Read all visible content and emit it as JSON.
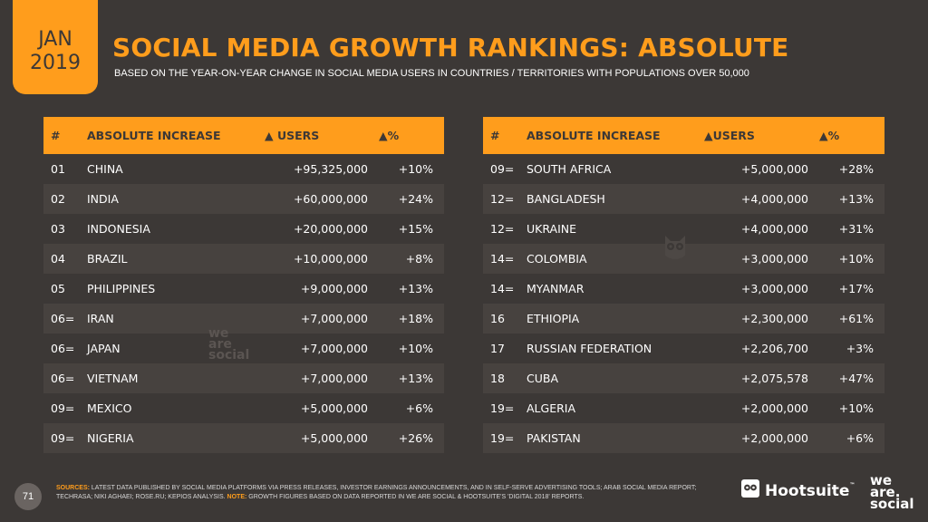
{
  "badge": {
    "month": "JAN",
    "year": "2019"
  },
  "title": "SOCIAL MEDIA GROWTH RANKINGS: ABSOLUTE",
  "subtitle": "BASED ON THE YEAR-ON-YEAR CHANGE IN SOCIAL MEDIA USERS IN COUNTRIES / TERRITORIES WITH POPULATIONS OVER 50,000",
  "left_table": {
    "headers": {
      "num": "#",
      "country": "ABSOLUTE INCREASE",
      "users": "▲ USERS",
      "pct": "▲%"
    },
    "rows": [
      {
        "num": "01",
        "country": "CHINA",
        "users": "+95,325,000",
        "pct": "+10%"
      },
      {
        "num": "02",
        "country": "INDIA",
        "users": "+60,000,000",
        "pct": "+24%"
      },
      {
        "num": "03",
        "country": "INDONESIA",
        "users": "+20,000,000",
        "pct": "+15%"
      },
      {
        "num": "04",
        "country": "BRAZIL",
        "users": "+10,000,000",
        "pct": "+8%"
      },
      {
        "num": "05",
        "country": "PHILIPPINES",
        "users": "+9,000,000",
        "pct": "+13%"
      },
      {
        "num": "06=",
        "country": "IRAN",
        "users": "+7,000,000",
        "pct": "+18%"
      },
      {
        "num": "06=",
        "country": "JAPAN",
        "users": "+7,000,000",
        "pct": "+10%"
      },
      {
        "num": "06=",
        "country": "VIETNAM",
        "users": "+7,000,000",
        "pct": "+13%"
      },
      {
        "num": "09=",
        "country": "MEXICO",
        "users": "+5,000,000",
        "pct": "+6%"
      },
      {
        "num": "09=",
        "country": "NIGERIA",
        "users": "+5,000,000",
        "pct": "+26%"
      }
    ]
  },
  "right_table": {
    "headers": {
      "num": "#",
      "country": "ABSOLUTE INCREASE",
      "users": "▲USERS",
      "pct": "▲%"
    },
    "rows": [
      {
        "num": "09=",
        "country": "SOUTH AFRICA",
        "users": "+5,000,000",
        "pct": "+28%"
      },
      {
        "num": "12=",
        "country": "BANGLADESH",
        "users": "+4,000,000",
        "pct": "+13%"
      },
      {
        "num": "12=",
        "country": "UKRAINE",
        "users": "+4,000,000",
        "pct": "+31%"
      },
      {
        "num": "14=",
        "country": "COLOMBIA",
        "users": "+3,000,000",
        "pct": "+10%"
      },
      {
        "num": "14=",
        "country": "MYANMAR",
        "users": "+3,000,000",
        "pct": "+17%"
      },
      {
        "num": "16",
        "country": "ETHIOPIA",
        "users": "+2,300,000",
        "pct": "+61%"
      },
      {
        "num": "17",
        "country": "RUSSIAN FEDERATION",
        "users": "+2,206,700",
        "pct": "+3%"
      },
      {
        "num": "18",
        "country": "CUBA",
        "users": "+2,075,578",
        "pct": "+47%"
      },
      {
        "num": "19=",
        "country": "ALGERIA",
        "users": "+2,000,000",
        "pct": "+10%"
      },
      {
        "num": "19=",
        "country": "PAKISTAN",
        "users": "+2,000,000",
        "pct": "+6%"
      }
    ]
  },
  "watermark": {
    "line1": "we",
    "line2": "are",
    "line3": "social"
  },
  "footer": {
    "page_number": "71",
    "sources_label": "SOURCES:",
    "sources_text": "LATEST DATA PUBLISHED BY SOCIAL MEDIA PLATFORMS VIA PRESS RELEASES, INVESTOR EARNINGS ANNOUNCEMENTS, AND IN SELF-SERVE ADVERTISING TOOLS; ARAB SOCIAL MEDIA REPORT; TECHRASA; NIKI AGHAEI; ROSE.RU; KEPIOS ANALYSIS.",
    "note_label": "NOTE:",
    "note_text": "GROWTH FIGURES BASED ON DATA REPORTED IN WE ARE SOCIAL & HOOTSUITE'S 'DIGITAL 2018' REPORTS.",
    "hootsuite_logo": "Hootsuite",
    "hootsuite_tm": "™",
    "was_logo": {
      "line1": "we",
      "line2": "are.",
      "line3": "social"
    }
  },
  "colors": {
    "accent": "#ff9d1c",
    "background": "#3c3836",
    "row_alt": "#47423f"
  },
  "icons": [
    "owl-icon"
  ]
}
